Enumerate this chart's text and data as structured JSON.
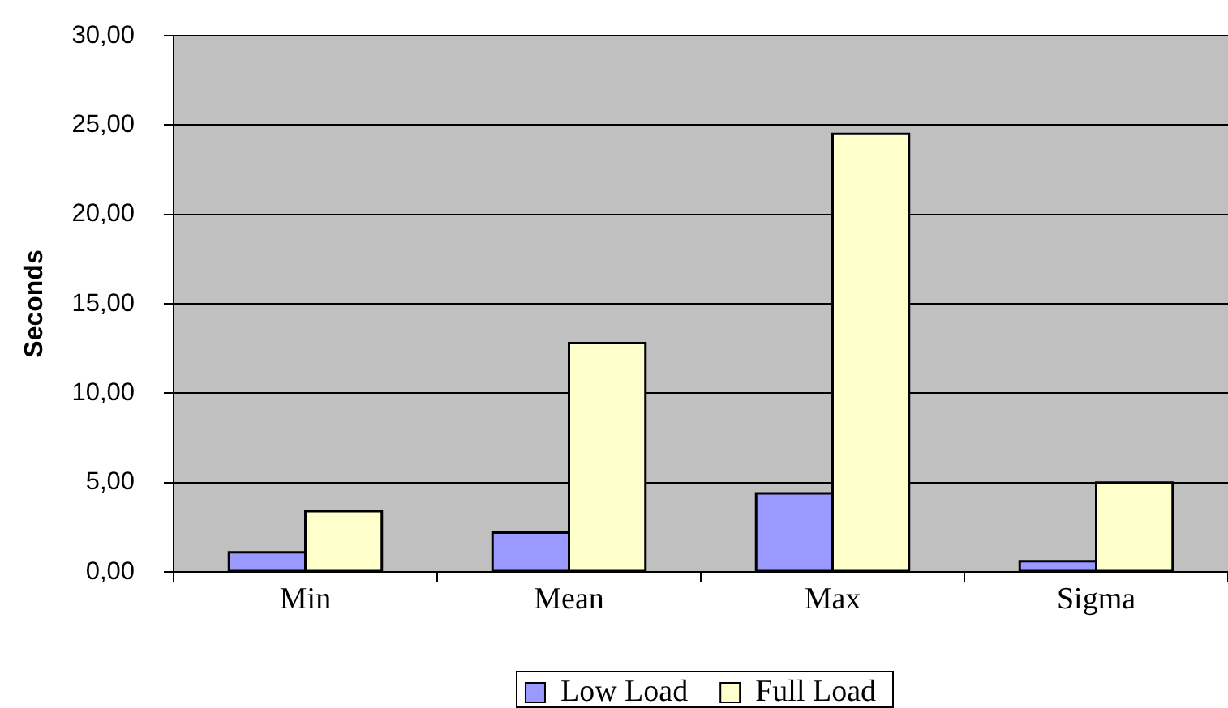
{
  "chart_data": {
    "type": "bar",
    "ylabel": "Seconds",
    "categories": [
      "Min",
      "Mean",
      "Max",
      "Sigma"
    ],
    "series": [
      {
        "name": "Low Load",
        "color": "#9999ff",
        "values": [
          1.1,
          2.2,
          4.4,
          0.6
        ]
      },
      {
        "name": "Full Load",
        "color": "#ffffcc",
        "values": [
          3.4,
          12.8,
          24.5,
          5.0
        ]
      }
    ],
    "ylim": [
      0,
      30
    ],
    "yticks": [
      {
        "value": 0,
        "label": "0,00"
      },
      {
        "value": 5,
        "label": "5,00"
      },
      {
        "value": 10,
        "label": "10,00"
      },
      {
        "value": 15,
        "label": "15,00"
      },
      {
        "value": 20,
        "label": "20,00"
      },
      {
        "value": 25,
        "label": "25,00"
      },
      {
        "value": 30,
        "label": "30,00"
      }
    ],
    "grid": "y",
    "legend": "bottom"
  }
}
